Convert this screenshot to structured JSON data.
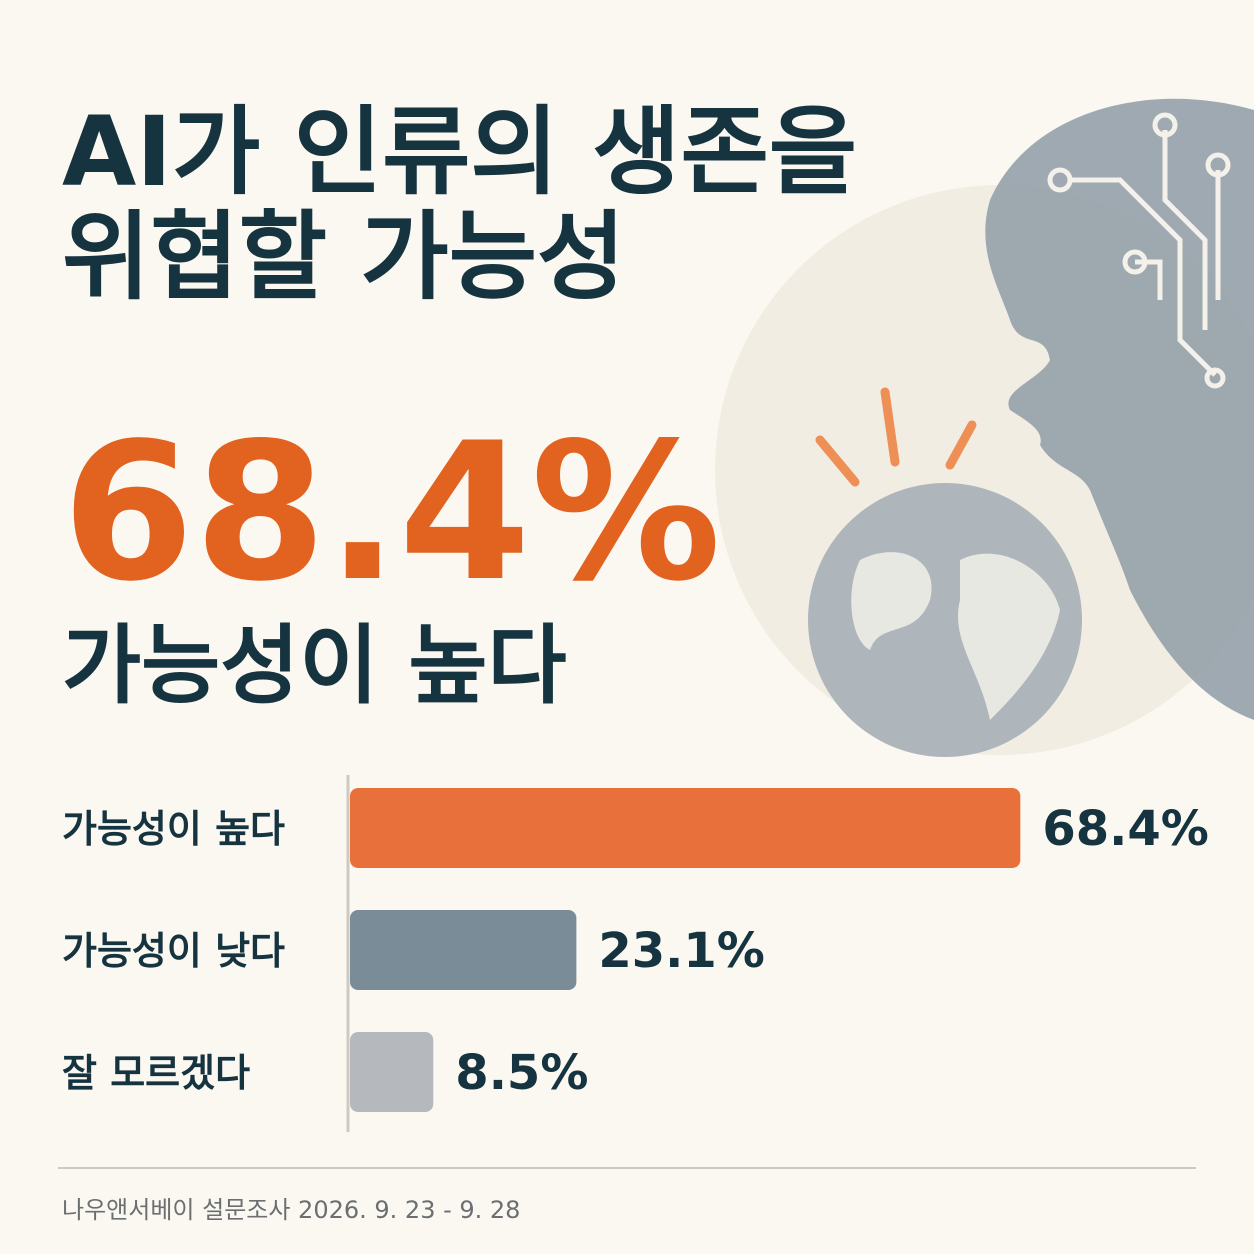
{
  "chart_data": {
    "type": "bar",
    "orientation": "horizontal",
    "title": [
      "AI가 인류의 생존을",
      "위협할 가능성"
    ],
    "headline": "68.4%",
    "subtitle": "가능성이 높다",
    "categories": [
      "가능성이 높다",
      "가능성이 낮다",
      "잘 모르겠다"
    ],
    "values": [
      68.4,
      23.1,
      8.5
    ],
    "value_labels": [
      "68.4%",
      "23.1%",
      "8.5%"
    ],
    "colors": [
      "#e8703a",
      "#7b8c99",
      "#b5b9bd"
    ],
    "source": "나우앤서베이 설문조사  2026. 9. 23 - 9. 28"
  }
}
